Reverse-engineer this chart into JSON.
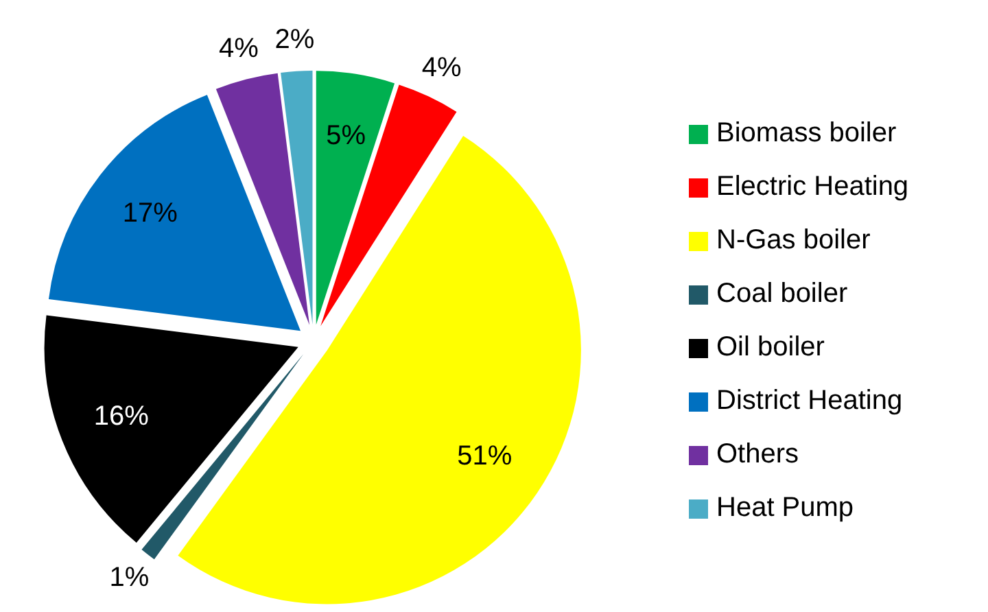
{
  "chart_data": {
    "type": "pie",
    "categories": [
      "Biomass boiler",
      "Electric Heating",
      "N-Gas boiler",
      "Coal boiler",
      "Oil boiler",
      "District Heating",
      "Others",
      "Heat Pump"
    ],
    "values": [
      5,
      4,
      51,
      1,
      16,
      17,
      4,
      2
    ],
    "colors": [
      "#00b050",
      "#ff0000",
      "#ffff00",
      "#215968",
      "#000000",
      "#0070c0",
      "#7030a0",
      "#4bacc6"
    ],
    "value_labels": [
      "5%",
      "4%",
      "51%",
      "1%",
      "16%",
      "17%",
      "4%",
      "2%"
    ],
    "legend": "right"
  }
}
